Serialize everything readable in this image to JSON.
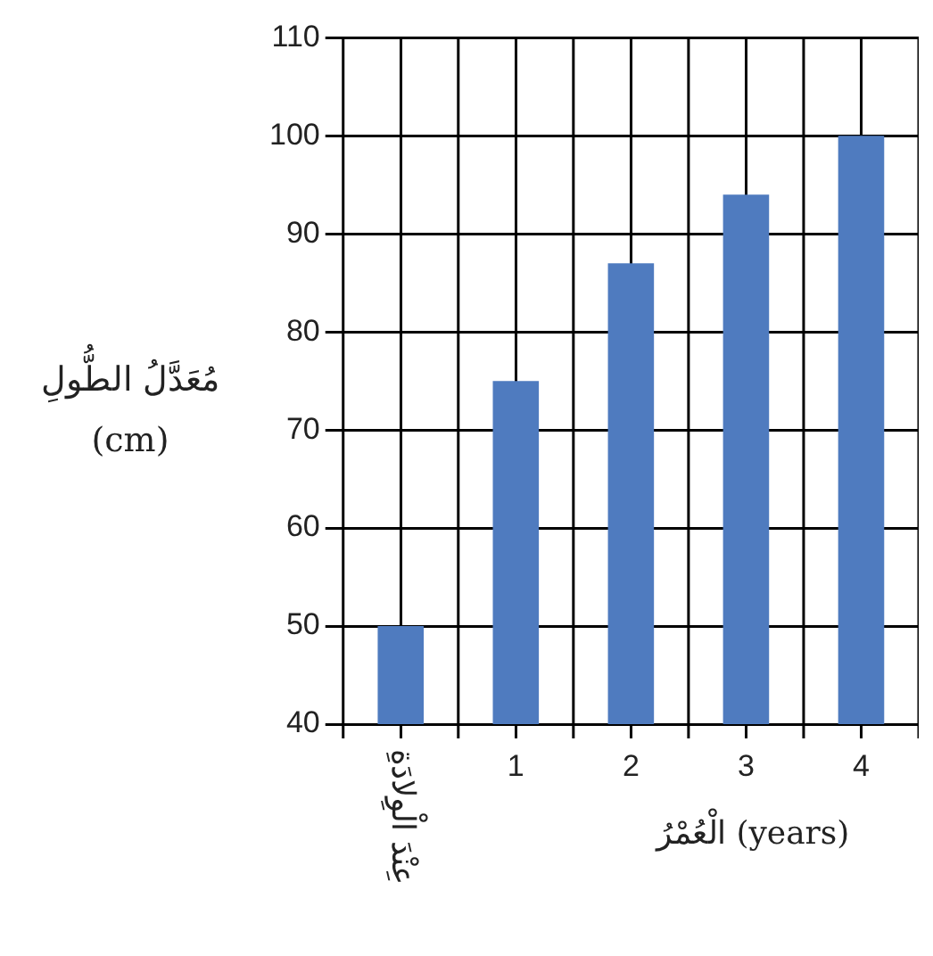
{
  "chart_data": {
    "type": "bar",
    "ylabel": "مُعَدَّلُ الطُّولِ\n(cm)",
    "xlabel": "الْعُمْرُ (years)",
    "categories": [
      "عِنْدَ الْوِلادَةِ",
      "1",
      "2",
      "3",
      "4"
    ],
    "values": [
      50,
      75,
      87,
      94,
      100
    ],
    "color": "#4f7bbf",
    "ylim": [
      40,
      110
    ],
    "yticks": [
      40,
      50,
      60,
      70,
      80,
      90,
      100,
      110
    ],
    "grid": true
  }
}
